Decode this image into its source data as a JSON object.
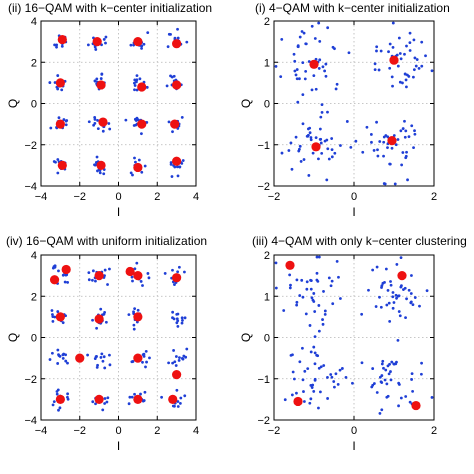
{
  "chart_data": [
    {
      "type": "scatter",
      "title": "(ii) 16−QAM with k−center initialization",
      "xlabel": "I",
      "ylabel": "Q",
      "xlim": [
        -4,
        4
      ],
      "ylim": [
        -4,
        4
      ],
      "xticks": [
        -4,
        -2,
        0,
        2,
        4
      ],
      "yticks": [
        -4,
        -2,
        0,
        2,
        4
      ],
      "xtick_labels": [
        "−4",
        "−2",
        "0",
        "2",
        "4"
      ],
      "ytick_labels": [
        "−4",
        "−2",
        "0",
        "2",
        "4"
      ],
      "grid": true,
      "cloud": {
        "centers": [
          [
            -3,
            3
          ],
          [
            -1,
            3
          ],
          [
            1,
            3
          ],
          [
            3,
            3
          ],
          [
            -3,
            1
          ],
          [
            -1,
            1
          ],
          [
            1,
            1
          ],
          [
            3,
            1
          ],
          [
            -3,
            -1
          ],
          [
            -1,
            -1
          ],
          [
            1,
            -1
          ],
          [
            3,
            -1
          ],
          [
            -3,
            -3
          ],
          [
            -1,
            -3
          ],
          [
            1,
            -3
          ],
          [
            3,
            -3
          ]
        ],
        "spread": 0.22,
        "per_cluster": 13,
        "seed": 11
      },
      "centroids": [
        [
          -2.9,
          3.1
        ],
        [
          -1.1,
          3.0
        ],
        [
          1.0,
          3.0
        ],
        [
          3.0,
          2.9
        ],
        [
          -3.0,
          1.0
        ],
        [
          -0.9,
          0.9
        ],
        [
          1.2,
          0.8
        ],
        [
          3.0,
          0.9
        ],
        [
          -3.0,
          -1.0
        ],
        [
          -0.8,
          -0.9
        ],
        [
          1.2,
          -1.0
        ],
        [
          2.9,
          -1.0
        ],
        [
          -2.9,
          -3.0
        ],
        [
          -0.9,
          -3.0
        ],
        [
          1.0,
          -3.1
        ],
        [
          3.0,
          -2.8
        ]
      ]
    },
    {
      "type": "scatter",
      "title": "(i) 4−QAM with k−center initialization",
      "xlabel": "I",
      "ylabel": "Q",
      "xlim": [
        -2,
        2
      ],
      "ylim": [
        -2,
        2
      ],
      "xticks": [
        -2,
        0,
        2
      ],
      "yticks": [
        -2,
        -1,
        0,
        1,
        2
      ],
      "xtick_labels": [
        "−2",
        "0",
        "2"
      ],
      "ytick_labels": [
        "−2",
        "−1",
        "0",
        "1",
        "2"
      ],
      "grid": true,
      "cloud": {
        "centers": [
          [
            -1,
            1
          ],
          [
            1,
            1
          ],
          [
            -1,
            -1
          ],
          [
            1,
            -1
          ]
        ],
        "spread": 0.38,
        "per_cluster": 45,
        "seed": 23
      },
      "centroids": [
        [
          -1.0,
          0.95
        ],
        [
          1.0,
          1.05
        ],
        [
          -0.95,
          -1.05
        ],
        [
          0.95,
          -0.9
        ]
      ]
    },
    {
      "type": "scatter",
      "title": "(iv) 16−QAM with uniform initialization",
      "xlabel": "I",
      "ylabel": "Q",
      "xlim": [
        -4,
        4
      ],
      "ylim": [
        -4,
        4
      ],
      "xticks": [
        -4,
        -2,
        0,
        2,
        4
      ],
      "yticks": [
        -4,
        -2,
        0,
        2,
        4
      ],
      "xtick_labels": [
        "−4",
        "−2",
        "0",
        "2",
        "4"
      ],
      "ytick_labels": [
        "−4",
        "−2",
        "0",
        "2",
        "4"
      ],
      "grid": true,
      "cloud": {
        "centers": [
          [
            -3,
            3
          ],
          [
            -1,
            3
          ],
          [
            1,
            3
          ],
          [
            3,
            3
          ],
          [
            -3,
            1
          ],
          [
            -1,
            1
          ],
          [
            1,
            1
          ],
          [
            3,
            1
          ],
          [
            -3,
            -1
          ],
          [
            -1,
            -1
          ],
          [
            1,
            -1
          ],
          [
            3,
            -1
          ],
          [
            -3,
            -3
          ],
          [
            -1,
            -3
          ],
          [
            1,
            -3
          ],
          [
            3,
            -3
          ]
        ],
        "spread": 0.25,
        "per_cluster": 13,
        "seed": 37
      },
      "centroids": [
        [
          -3.3,
          2.8
        ],
        [
          -2.7,
          3.3
        ],
        [
          -1.0,
          3.0
        ],
        [
          0.6,
          3.2
        ],
        [
          1.0,
          3.0
        ],
        [
          3.0,
          2.9
        ],
        [
          -3.0,
          1.0
        ],
        [
          -1.0,
          0.9
        ],
        [
          1.0,
          1.0
        ],
        [
          -2.0,
          -1.0
        ],
        [
          1.0,
          -1.0
        ],
        [
          3.0,
          -1.8
        ],
        [
          -3.0,
          -3.0
        ],
        [
          -1.0,
          -3.0
        ],
        [
          1.0,
          -3.0
        ],
        [
          2.8,
          -3.0
        ]
      ]
    },
    {
      "type": "scatter",
      "title": "(iii) 4−QAM with only k−center clustering",
      "xlabel": "I",
      "ylabel": "Q",
      "xlim": [
        -2,
        2
      ],
      "ylim": [
        -2,
        2
      ],
      "xticks": [
        -2,
        0,
        2
      ],
      "yticks": [
        -2,
        -1,
        0,
        1,
        2
      ],
      "xtick_labels": [
        "−2",
        "0",
        "2"
      ],
      "ytick_labels": [
        "−2",
        "−1",
        "0",
        "1",
        "2"
      ],
      "grid": true,
      "cloud": {
        "centers": [
          [
            -1,
            1
          ],
          [
            1,
            1
          ],
          [
            -1,
            -1
          ],
          [
            1,
            -1
          ]
        ],
        "spread": 0.38,
        "per_cluster": 45,
        "seed": 59
      },
      "centroids": [
        [
          -1.6,
          1.75
        ],
        [
          1.2,
          1.5
        ],
        [
          -1.4,
          -1.55
        ],
        [
          1.55,
          -1.65
        ]
      ]
    }
  ],
  "colors": {
    "samples": "#1f3fd6",
    "centroids": "#ee1111",
    "frame": "#000000",
    "grid": "#b5b5b5"
  },
  "marker": {
    "shape": "circle"
  }
}
